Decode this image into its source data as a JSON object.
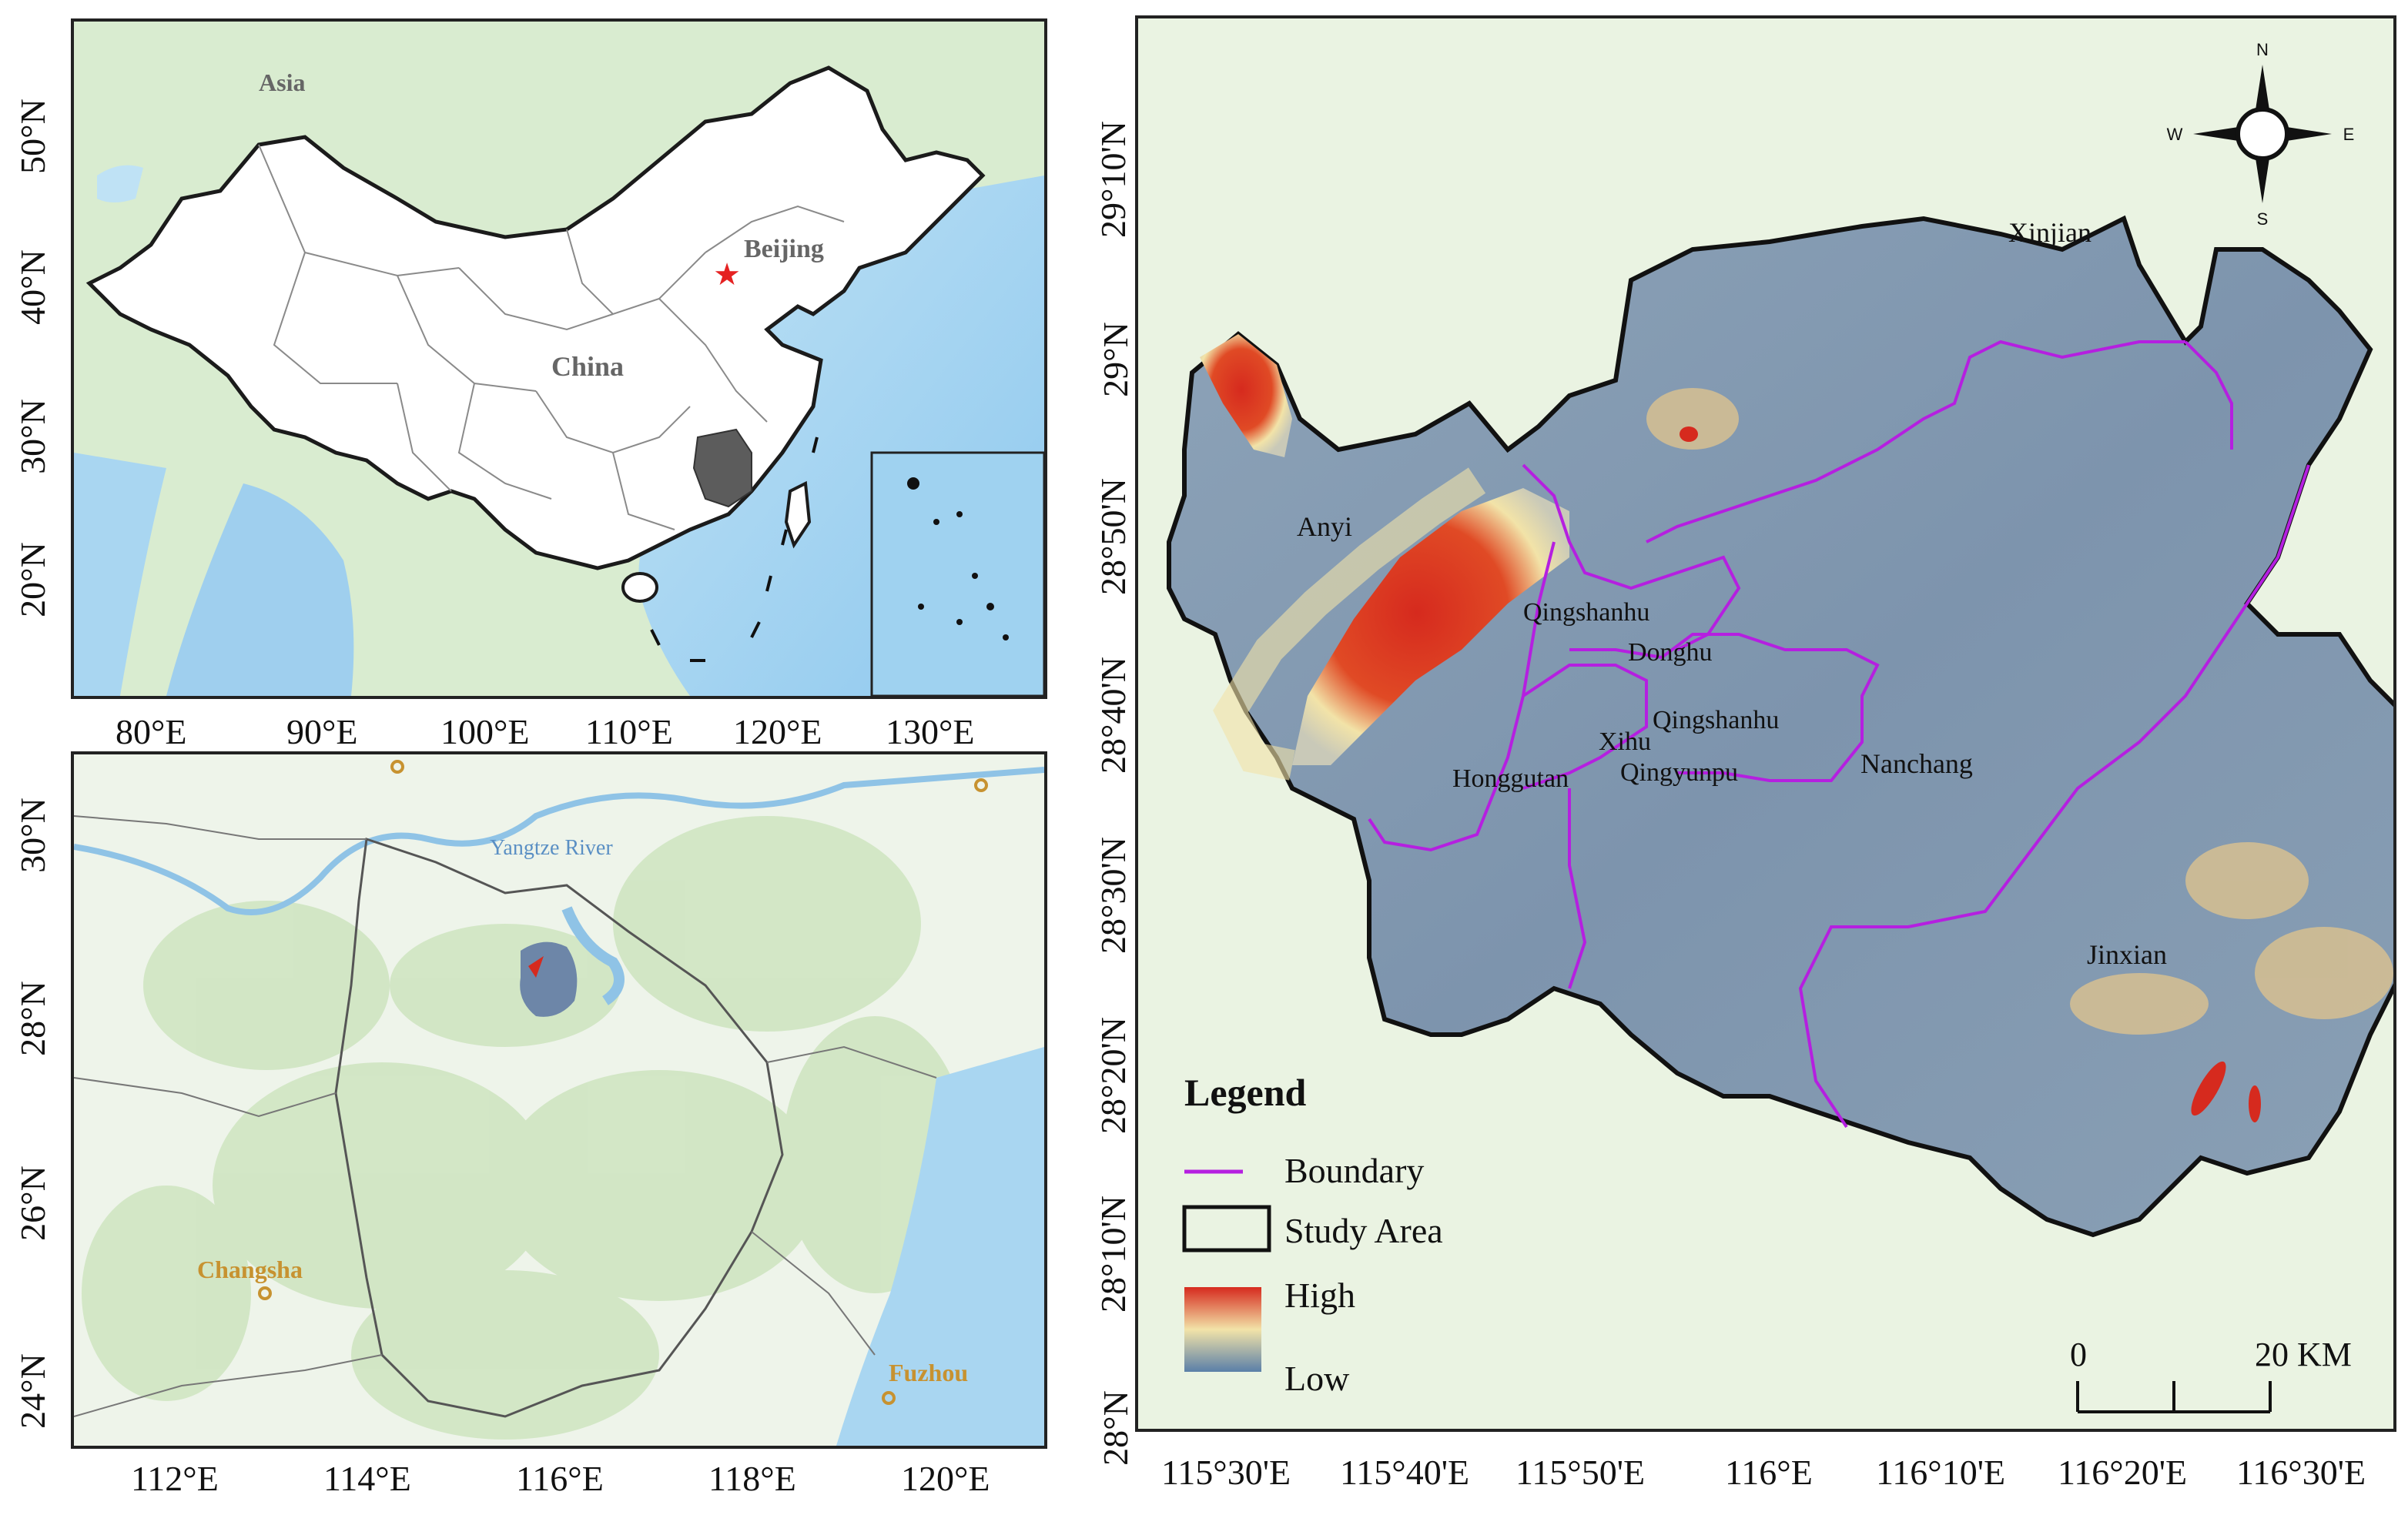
{
  "overview_map": {
    "labels": {
      "continent": "Asia",
      "country": "China",
      "capital": "Beijing"
    },
    "x_ticks": [
      "80°E",
      "90°E",
      "100°E",
      "110°E",
      "120°E",
      "130°E"
    ],
    "y_ticks": [
      "50°N",
      "40°N",
      "30°N",
      "20°N"
    ]
  },
  "regional_map": {
    "labels": {
      "river": "Yangtze River",
      "city_west": "Changsha",
      "city_east": "Fuzhou"
    },
    "x_ticks": [
      "112°E",
      "114°E",
      "116°E",
      "118°E",
      "120°E"
    ],
    "y_ticks": [
      "30°N",
      "28°N",
      "26°N",
      "24°N"
    ]
  },
  "study_map": {
    "districts": [
      "Xinjian",
      "Anyi",
      "Qingshanhu",
      "Donghu",
      "Xihu",
      "Qingshanhu",
      "Qingyunpu",
      "Honggutan",
      "Nanchang",
      "Jinxian"
    ],
    "x_ticks": [
      "115°30'E",
      "115°40'E",
      "115°50'E",
      "116°E",
      "116°10'E",
      "116°20'E",
      "116°30'E"
    ],
    "y_ticks": [
      "29°10'N",
      "29°N",
      "28°50'N",
      "28°40'N",
      "28°30'N",
      "28°20'N",
      "28°10'N",
      "28°N"
    ],
    "compass": {
      "n": "N",
      "s": "S",
      "e": "E",
      "w": "W"
    },
    "scale_bar": {
      "start": "0",
      "end": "20 KM"
    },
    "legend": {
      "title": "Legend",
      "boundary": "Boundary",
      "study_area": "Study Area",
      "high": "High",
      "low": "Low"
    }
  },
  "colors": {
    "boundary": "#b51fe0",
    "dem_low": "#5a7fa8",
    "dem_mid": "#f2e3a8",
    "dem_high": "#d62a1e",
    "province": "#6b6b6b",
    "ocean": "#a9d6f1"
  }
}
